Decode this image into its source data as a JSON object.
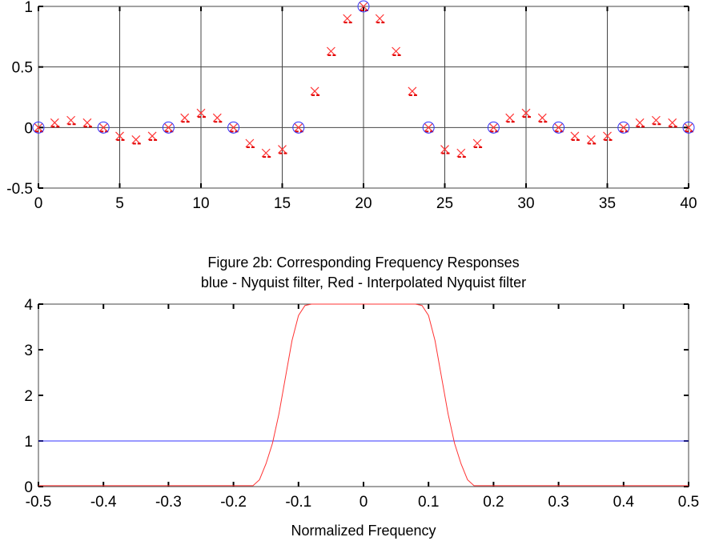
{
  "chart_data": [
    {
      "type": "scatter",
      "title": "",
      "xlabel": "",
      "ylabel": "",
      "xlim": [
        0,
        40
      ],
      "ylim": [
        -0.5,
        1
      ],
      "grid": true,
      "xticks": [
        "0",
        "5",
        "10",
        "15",
        "20",
        "25",
        "30",
        "35",
        "40"
      ],
      "xtick_values": [
        0,
        5,
        10,
        15,
        20,
        25,
        30,
        35,
        40
      ],
      "yticks": [
        "1",
        "0.5",
        "0",
        "-0.5"
      ],
      "ytick_values": [
        1,
        0.5,
        0,
        -0.5
      ],
      "series": [
        {
          "name": "Nyquist filter",
          "marker": "circle",
          "color": "#3333ff",
          "x": [
            0,
            4,
            8,
            12,
            16,
            20,
            24,
            28,
            32,
            36,
            40
          ],
          "y": [
            0,
            0,
            0,
            0,
            0,
            1,
            0,
            0,
            0,
            0,
            0
          ]
        },
        {
          "name": "Interpolated Nyquist filter",
          "marker": "x",
          "color": "#ff3333",
          "x": [
            0,
            1,
            2,
            3,
            4,
            5,
            6,
            7,
            8,
            9,
            10,
            11,
            12,
            13,
            14,
            15,
            16,
            17,
            18,
            19,
            20,
            21,
            22,
            23,
            24,
            25,
            26,
            27,
            28,
            29,
            30,
            31,
            32,
            33,
            34,
            35,
            36,
            37,
            38,
            39,
            40
          ],
          "y": [
            0,
            0.04,
            0.06,
            0.04,
            0,
            -0.07,
            -0.1,
            -0.07,
            0,
            0.08,
            0.12,
            0.08,
            0,
            -0.13,
            -0.21,
            -0.18,
            0,
            0.3,
            0.63,
            0.9,
            1,
            0.9,
            0.63,
            0.3,
            0,
            -0.18,
            -0.21,
            -0.13,
            0,
            0.08,
            0.12,
            0.08,
            0,
            -0.07,
            -0.1,
            -0.07,
            0,
            0.04,
            0.06,
            0.04,
            0
          ]
        }
      ]
    },
    {
      "type": "line",
      "title": "Figure 2b: Corresponding Frequency Responses",
      "subtitle": "blue - Nyquist filter, Red - Interpolated Nyquist filter",
      "xlabel": "Normalized Frequency",
      "ylabel": "",
      "xlim": [
        -0.5,
        0.5
      ],
      "ylim": [
        0,
        4
      ],
      "grid": false,
      "xticks": [
        "-0.5",
        "-0.4",
        "-0.3",
        "-0.2",
        "-0.1",
        "0",
        "0.1",
        "0.2",
        "0.3",
        "0.4",
        "0.5"
      ],
      "xtick_values": [
        -0.5,
        -0.4,
        -0.3,
        -0.2,
        -0.1,
        0,
        0.1,
        0.2,
        0.3,
        0.4,
        0.5
      ],
      "yticks": [
        "4",
        "3",
        "2",
        "1",
        "0"
      ],
      "ytick_values": [
        4,
        3,
        2,
        1,
        0
      ],
      "series": [
        {
          "name": "Nyquist filter",
          "color": "#3333ff",
          "x": [
            -0.5,
            0.5
          ],
          "y": [
            1,
            1
          ]
        },
        {
          "name": "Interpolated Nyquist filter",
          "color": "#ff3333",
          "x": [
            -0.5,
            -0.17,
            -0.16,
            -0.15,
            -0.14,
            -0.13,
            -0.12,
            -0.11,
            -0.1,
            -0.09,
            -0.08,
            0,
            0.08,
            0.09,
            0.1,
            0.11,
            0.12,
            0.13,
            0.14,
            0.15,
            0.16,
            0.17,
            0.5
          ],
          "y": [
            0.02,
            0.02,
            0.15,
            0.5,
            0.95,
            1.6,
            2.4,
            3.2,
            3.75,
            3.97,
            4,
            4,
            4,
            3.97,
            3.75,
            3.2,
            2.4,
            1.6,
            0.95,
            0.5,
            0.15,
            0.02,
            0.02
          ]
        }
      ]
    }
  ]
}
